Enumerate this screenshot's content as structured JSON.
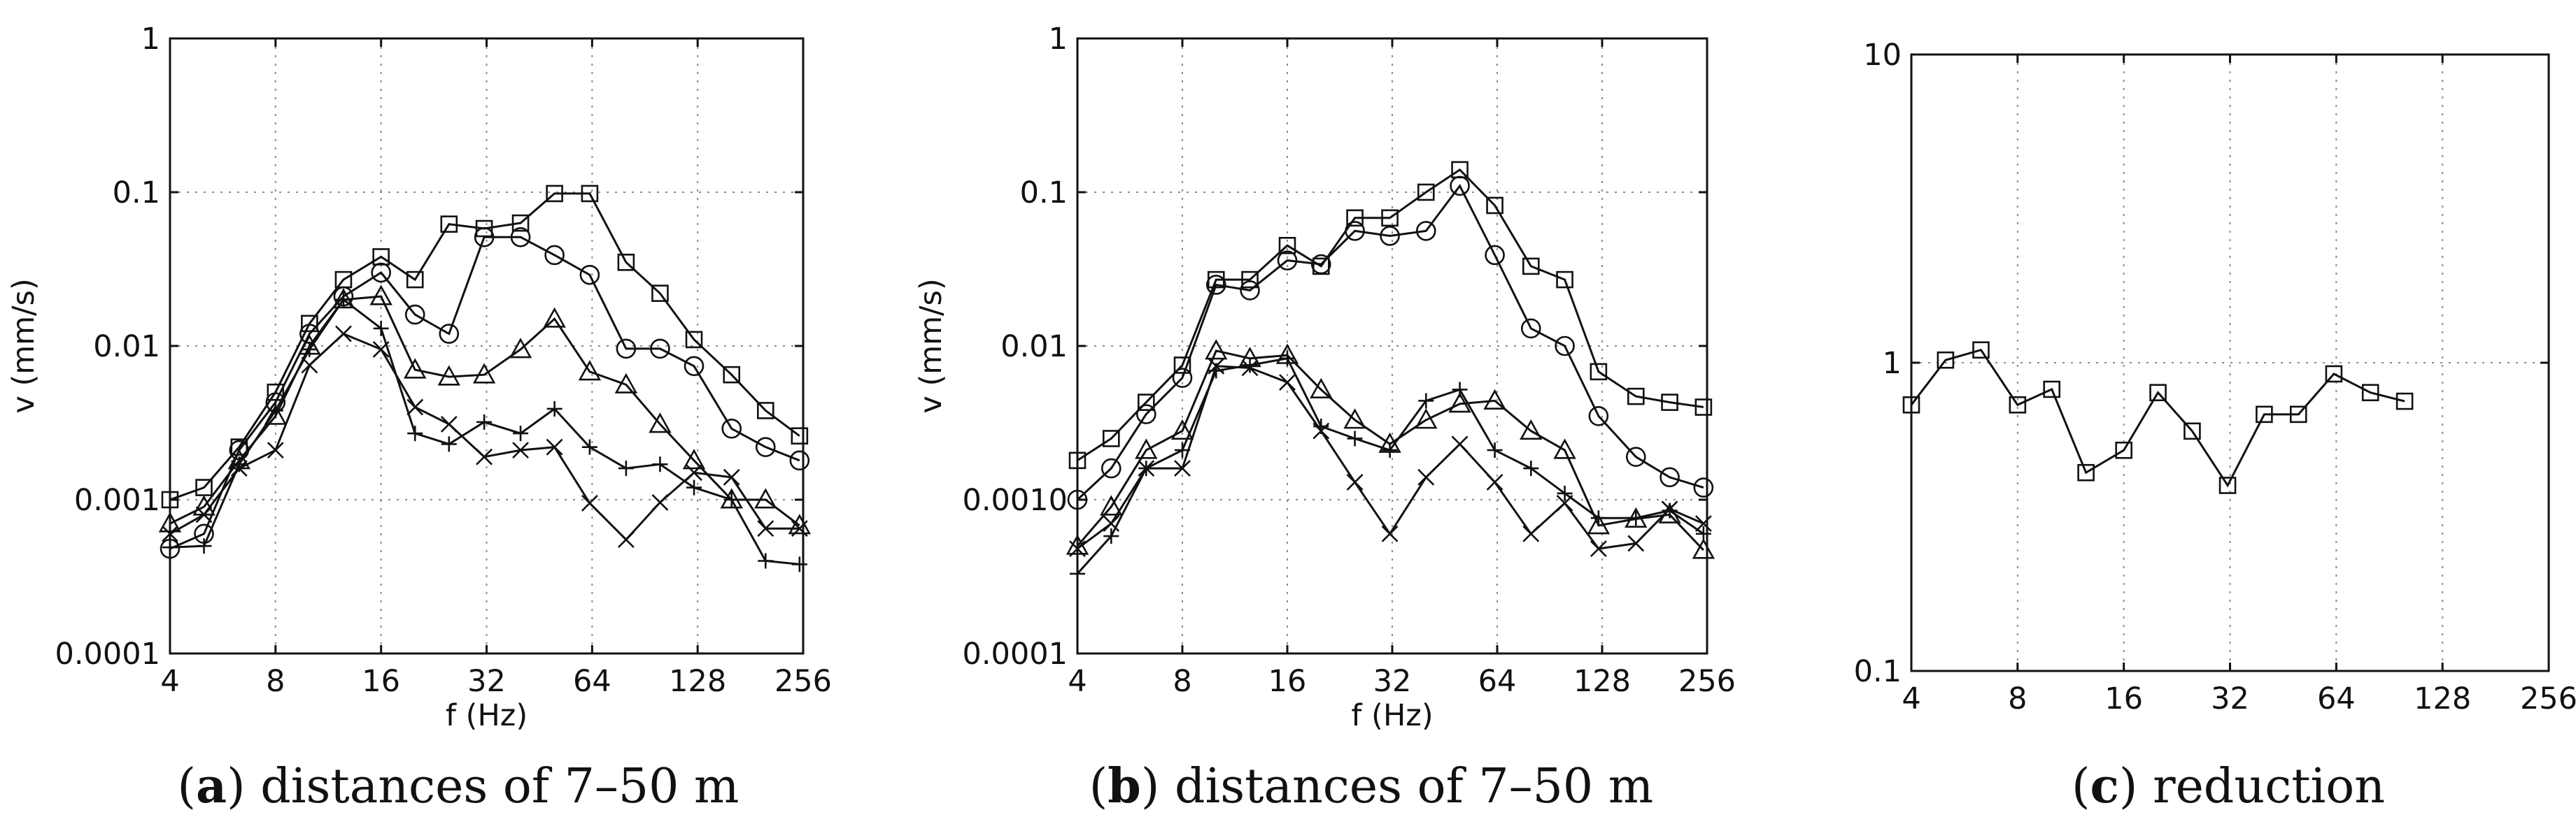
{
  "chart_data": [
    {
      "type": "line",
      "id": "a",
      "caption_label": "a",
      "caption_text": "distances of 7–50 m",
      "xlabel": "f (Hz)",
      "ylabel": "v (mm/s)",
      "xscale": "log2",
      "yscale": "log10",
      "xlim": [
        4,
        256
      ],
      "ylim": [
        0.0001,
        1
      ],
      "xticks": [
        4,
        8,
        16,
        32,
        64,
        128,
        256
      ],
      "xtick_labels": [
        "4",
        "8",
        "16",
        "32",
        "64",
        "128",
        "256"
      ],
      "yticks": [
        0.0001,
        0.001,
        0.01,
        0.1,
        1
      ],
      "ytick_labels": [
        "0.0001",
        "0.001",
        "0.01",
        "0.1",
        "1"
      ],
      "grid": true,
      "x": [
        4,
        5,
        6.3,
        8,
        10,
        12.5,
        16,
        20,
        25,
        31.5,
        40,
        50,
        63,
        80,
        100,
        125,
        160,
        200,
        250
      ],
      "series": [
        {
          "name": "square",
          "marker": "square",
          "values": [
            0.001,
            0.0012,
            0.0022,
            0.005,
            0.014,
            0.027,
            0.038,
            0.027,
            0.062,
            0.058,
            0.063,
            0.098,
            0.098,
            0.035,
            0.022,
            0.011,
            0.0065,
            0.0038,
            0.0026
          ]
        },
        {
          "name": "circle",
          "marker": "circle",
          "values": [
            0.00048,
            0.0006,
            0.0021,
            0.0043,
            0.012,
            0.021,
            0.03,
            0.016,
            0.012,
            0.051,
            0.051,
            0.039,
            0.029,
            0.0096,
            0.0096,
            0.0074,
            0.0029,
            0.0022,
            0.0018
          ]
        },
        {
          "name": "triangle",
          "marker": "triangle",
          "values": [
            0.0007,
            0.0009,
            0.0018,
            0.0035,
            0.01,
            0.02,
            0.021,
            0.007,
            0.0063,
            0.0065,
            0.0095,
            0.015,
            0.0068,
            0.0056,
            0.0031,
            0.0018,
            0.001,
            0.001,
            0.00068
          ]
        },
        {
          "name": "plus",
          "marker": "plus",
          "values": [
            0.00049,
            0.0005,
            0.0017,
            0.0038,
            0.0095,
            0.02,
            0.013,
            0.0027,
            0.0023,
            0.0032,
            0.0027,
            0.0039,
            0.0022,
            0.0016,
            0.0017,
            0.0012,
            0.001,
            0.0004,
            0.00038
          ]
        },
        {
          "name": "cross",
          "marker": "x",
          "values": [
            0.0006,
            0.0008,
            0.0016,
            0.0021,
            0.0075,
            0.012,
            0.0095,
            0.004,
            0.0031,
            0.0019,
            0.0021,
            0.0022,
            0.00095,
            0.00055,
            0.00096,
            0.0015,
            0.0014,
            0.00065,
            0.00065
          ]
        }
      ]
    },
    {
      "type": "line",
      "id": "b",
      "caption_label": "b",
      "caption_text": "distances of 7–50 m",
      "xlabel": "f (Hz)",
      "ylabel": "v (mm/s)",
      "xscale": "log2",
      "yscale": "log10",
      "xlim": [
        4,
        256
      ],
      "ylim": [
        0.0001,
        1
      ],
      "xticks": [
        4,
        8,
        16,
        32,
        64,
        128,
        256
      ],
      "xtick_labels": [
        "4",
        "8",
        "16",
        "32",
        "64",
        "128",
        "256"
      ],
      "yticks": [
        0.0001,
        0.001,
        0.01,
        0.1,
        1
      ],
      "ytick_labels": [
        "0.0001",
        "0.0010",
        "0.01",
        "0.1",
        "1"
      ],
      "grid": true,
      "x": [
        4,
        5,
        6.3,
        8,
        10,
        12.5,
        16,
        20,
        25,
        31.5,
        40,
        50,
        63,
        80,
        100,
        125,
        160,
        200,
        250
      ],
      "series": [
        {
          "name": "square",
          "marker": "square",
          "values": [
            0.0018,
            0.0025,
            0.0043,
            0.0075,
            0.027,
            0.027,
            0.045,
            0.033,
            0.068,
            0.068,
            0.1,
            0.14,
            0.082,
            0.033,
            0.027,
            0.0068,
            0.0047,
            0.0043,
            0.004
          ]
        },
        {
          "name": "circle",
          "marker": "circle",
          "values": [
            0.001,
            0.0016,
            0.0036,
            0.0062,
            0.025,
            0.023,
            0.036,
            0.034,
            0.056,
            0.052,
            0.056,
            0.11,
            0.039,
            0.013,
            0.01,
            0.0035,
            0.0019,
            0.0014,
            0.0012
          ]
        },
        {
          "name": "triangle",
          "marker": "triangle",
          "values": [
            0.0005,
            0.0009,
            0.0021,
            0.0028,
            0.0093,
            0.0083,
            0.0087,
            0.0052,
            0.0033,
            0.0023,
            0.0033,
            0.0042,
            0.0044,
            0.0028,
            0.0021,
            0.00068,
            0.00075,
            0.0008,
            0.00047
          ]
        },
        {
          "name": "plus",
          "marker": "plus",
          "values": [
            0.00033,
            0.00058,
            0.0016,
            0.0021,
            0.0069,
            0.0075,
            0.0083,
            0.003,
            0.0025,
            0.0021,
            0.0044,
            0.0052,
            0.0021,
            0.0016,
            0.0011,
            0.00076,
            0.00076,
            0.00085,
            0.0006
          ]
        },
        {
          "name": "cross",
          "marker": "x",
          "values": [
            0.00048,
            0.0007,
            0.0016,
            0.0016,
            0.0074,
            0.0072,
            0.0058,
            0.0028,
            0.0013,
            0.0006,
            0.0014,
            0.0023,
            0.0013,
            0.0006,
            0.00095,
            0.00048,
            0.00052,
            0.00087,
            0.0007
          ]
        }
      ]
    },
    {
      "type": "line",
      "id": "c",
      "caption_label": "c",
      "caption_text": "reduction",
      "xlabel": "",
      "ylabel": "",
      "xscale": "log2",
      "yscale": "log10",
      "xlim": [
        4,
        256
      ],
      "ylim": [
        0.1,
        10
      ],
      "xticks": [
        4,
        8,
        16,
        32,
        64,
        128,
        256
      ],
      "xtick_labels": [
        "4",
        "8",
        "16",
        "32",
        "64",
        "128",
        "256"
      ],
      "yticks": [
        0.1,
        1,
        10
      ],
      "ytick_labels": [
        "0.1",
        "1",
        "10"
      ],
      "grid": true,
      "x": [
        4,
        5,
        6.3,
        8,
        10,
        12.5,
        16,
        20,
        25,
        31.5,
        40,
        50,
        63,
        80,
        100
      ],
      "series": [
        {
          "name": "reduction",
          "marker": "square",
          "values": [
            0.73,
            1.02,
            1.1,
            0.73,
            0.82,
            0.44,
            0.52,
            0.8,
            0.6,
            0.4,
            0.68,
            0.68,
            0.92,
            0.8,
            0.75
          ]
        }
      ]
    }
  ]
}
